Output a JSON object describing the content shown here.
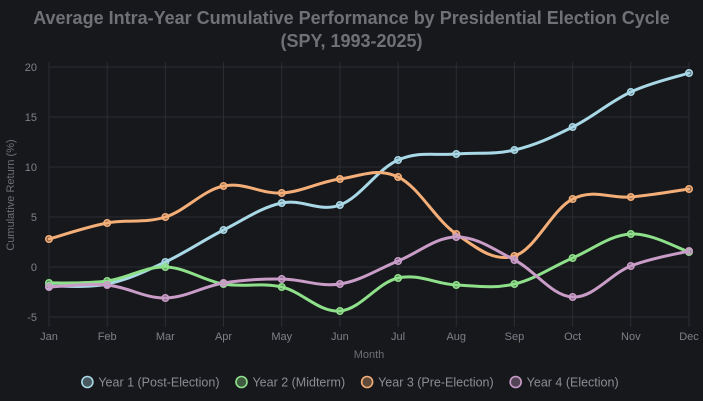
{
  "chart_data": {
    "type": "line",
    "title_lines": [
      "Average Intra-Year Cumulative Performance by Presidential Election Cycle",
      "(SPY, 1993-2025)"
    ],
    "xlabel": "Month",
    "ylabel": "Cumulative Return (%)",
    "categories": [
      "Jan",
      "Feb",
      "Mar",
      "Apr",
      "May",
      "Jun",
      "Jul",
      "Aug",
      "Sep",
      "Oct",
      "Nov",
      "Dec"
    ],
    "ylim": [
      -5.5,
      20.5
    ],
    "yticks": [
      -5,
      0,
      5,
      10,
      15,
      20
    ],
    "grid": true,
    "legend_position": "bottom",
    "series": [
      {
        "name": "Year 1 (Post-Election)",
        "color": "#a9d8e6",
        "values": [
          -1.9,
          -1.7,
          0.5,
          3.7,
          6.4,
          6.2,
          10.7,
          11.3,
          11.7,
          14.0,
          17.5,
          19.4
        ]
      },
      {
        "name": "Year 2 (Midterm)",
        "color": "#8fe08a",
        "values": [
          -1.6,
          -1.4,
          0.0,
          -1.7,
          -2.0,
          -4.4,
          -1.1,
          -1.8,
          -1.7,
          0.9,
          3.3,
          1.5
        ]
      },
      {
        "name": "Year 3 (Pre-Election)",
        "color": "#f4ae78",
        "values": [
          2.8,
          4.4,
          5.0,
          8.1,
          7.4,
          8.8,
          9.0,
          3.3,
          1.1,
          6.8,
          7.0,
          7.8
        ]
      },
      {
        "name": "Year 4 (Election)",
        "color": "#c99dc8",
        "values": [
          -2.0,
          -1.8,
          -3.1,
          -1.6,
          -1.2,
          -1.7,
          0.6,
          3.0,
          0.7,
          -3.0,
          0.1,
          1.6
        ]
      }
    ]
  }
}
